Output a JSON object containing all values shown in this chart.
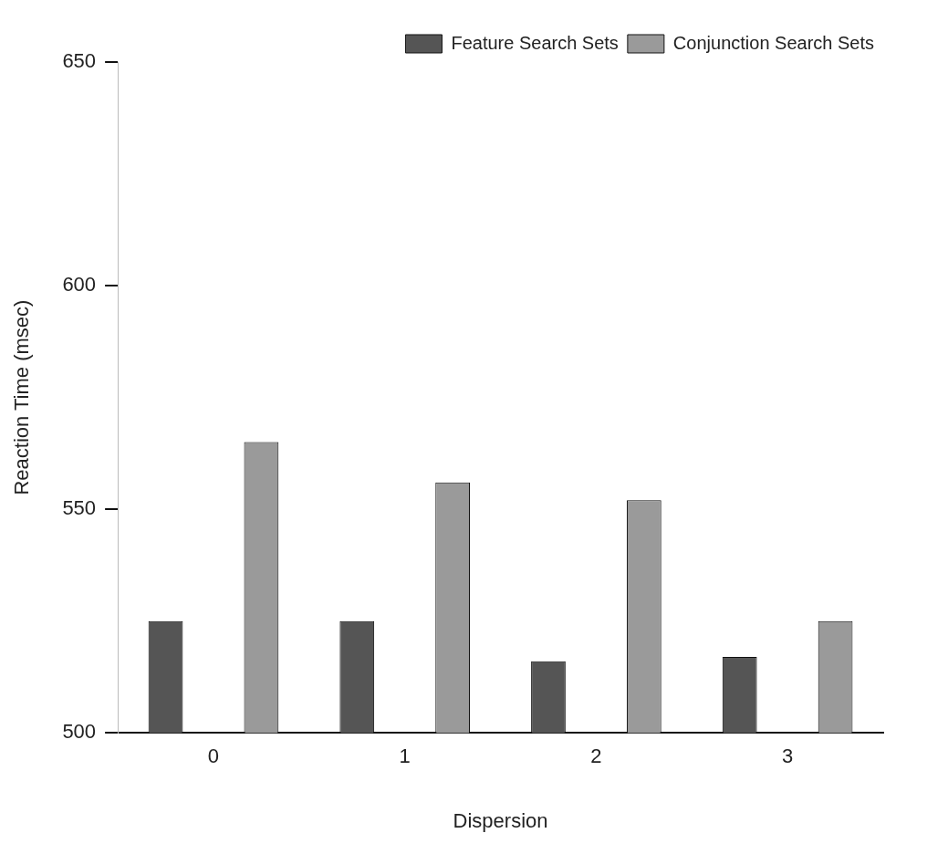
{
  "chart_data": {
    "type": "bar",
    "xlabel": "Dispersion",
    "ylabel": "Reaction Time (msec)",
    "categories": [
      "0",
      "1",
      "2",
      "3"
    ],
    "series": [
      {
        "name": "Feature Search Sets",
        "color": "#555555",
        "values": [
          525,
          525,
          516,
          517
        ]
      },
      {
        "name": "Conjunction Search Sets",
        "color": "#9a9a9a",
        "values": [
          565,
          556,
          552,
          525
        ]
      }
    ],
    "ylim": [
      500,
      650
    ],
    "yticks": [
      500,
      550,
      600,
      650
    ],
    "grid": false,
    "legend": "top right"
  }
}
